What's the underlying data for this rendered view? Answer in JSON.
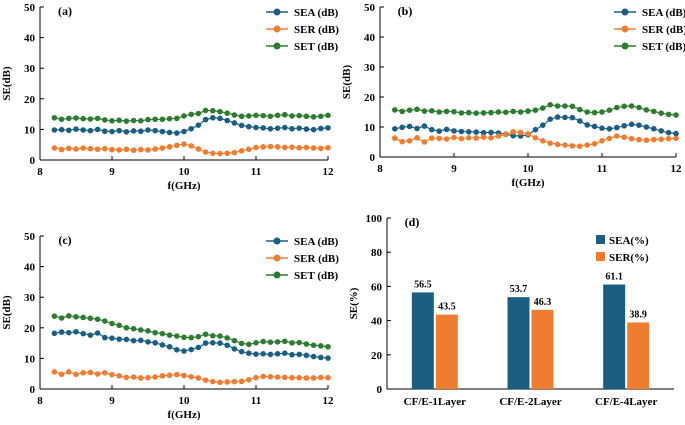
{
  "colors": {
    "sea": "#1b5e82",
    "ser": "#ee7d31",
    "set": "#2e7b32"
  },
  "chart_data": [
    {
      "id": "a",
      "panel_label": "(a)",
      "type": "line",
      "xlabel": "f(GHz)",
      "ylabel": "SE(dB)",
      "xlim": [
        8,
        12
      ],
      "ylim": [
        0,
        50
      ],
      "xticks": [
        8,
        9,
        10,
        11,
        12
      ],
      "yticks": [
        0,
        10,
        20,
        30,
        40,
        50
      ],
      "legend_position": "top-right",
      "x": [
        8.2,
        8.3,
        8.4,
        8.5,
        8.6,
        8.7,
        8.8,
        8.9,
        9.0,
        9.1,
        9.2,
        9.3,
        9.4,
        9.5,
        9.6,
        9.7,
        9.8,
        9.9,
        10.0,
        10.1,
        10.2,
        10.3,
        10.4,
        10.5,
        10.6,
        10.7,
        10.8,
        10.9,
        11.0,
        11.1,
        11.2,
        11.3,
        11.4,
        11.5,
        11.6,
        11.7,
        11.8,
        11.9,
        12.0
      ],
      "series": [
        {
          "name": "SEA (dB)",
          "color_key": "sea",
          "values": [
            9.8,
            9.9,
            9.7,
            10.1,
            9.8,
            9.6,
            10.0,
            9.4,
            9.3,
            9.6,
            9.2,
            9.5,
            9.4,
            9.8,
            9.6,
            9.3,
            9.0,
            8.8,
            9.3,
            10.2,
            11.4,
            13.2,
            13.8,
            13.6,
            12.9,
            12.1,
            11.3,
            10.9,
            10.6,
            10.5,
            10.2,
            10.4,
            10.6,
            10.2,
            10.4,
            10.1,
            9.9,
            10.3,
            10.5
          ]
        },
        {
          "name": "SER (dB)",
          "color_key": "ser",
          "values": [
            3.9,
            3.4,
            3.8,
            3.6,
            3.9,
            3.7,
            3.5,
            3.7,
            3.4,
            3.3,
            3.5,
            3.2,
            3.4,
            3.3,
            3.6,
            3.9,
            4.3,
            4.8,
            5.2,
            4.6,
            3.6,
            2.6,
            2.2,
            2.1,
            2.2,
            2.4,
            3.0,
            3.5,
            4.1,
            4.3,
            4.4,
            4.3,
            4.1,
            4.2,
            4.0,
            4.1,
            3.9,
            3.8,
            4.0
          ]
        },
        {
          "name": "SET (dB)",
          "color_key": "set",
          "values": [
            13.8,
            13.3,
            13.6,
            13.7,
            13.5,
            13.4,
            13.6,
            13.1,
            12.8,
            13.0,
            12.7,
            12.9,
            12.8,
            13.2,
            13.3,
            13.3,
            13.5,
            13.6,
            14.4,
            14.9,
            15.2,
            16.2,
            16.1,
            15.8,
            15.3,
            14.7,
            14.3,
            14.4,
            14.6,
            14.5,
            14.3,
            14.6,
            14.8,
            14.4,
            14.5,
            14.3,
            14.1,
            14.3,
            14.6
          ]
        }
      ]
    },
    {
      "id": "b",
      "panel_label": "(b)",
      "type": "line",
      "xlabel": "f(GHz)",
      "ylabel": "SE(dB)",
      "xlim": [
        8,
        12
      ],
      "ylim": [
        0,
        50
      ],
      "xticks": [
        8,
        9,
        10,
        11,
        12
      ],
      "yticks": [
        0,
        10,
        20,
        30,
        40,
        50
      ],
      "legend_position": "top-right",
      "x": [
        8.2,
        8.3,
        8.4,
        8.5,
        8.6,
        8.7,
        8.8,
        8.9,
        9.0,
        9.1,
        9.2,
        9.3,
        9.4,
        9.5,
        9.6,
        9.7,
        9.8,
        9.9,
        10.0,
        10.1,
        10.2,
        10.3,
        10.4,
        10.5,
        10.6,
        10.7,
        10.8,
        10.9,
        11.0,
        11.1,
        11.2,
        11.3,
        11.4,
        11.5,
        11.6,
        11.7,
        11.8,
        11.9,
        12.0
      ],
      "series": [
        {
          "name": "SEA (dB)",
          "color_key": "sea",
          "values": [
            9.4,
            9.9,
            10.2,
            9.5,
            10.3,
            9.1,
            8.6,
            9.2,
            8.7,
            8.5,
            8.4,
            8.3,
            8.1,
            8.2,
            8.0,
            7.6,
            7.1,
            7.0,
            7.4,
            9.1,
            10.6,
            12.6,
            13.3,
            13.2,
            13.1,
            12.0,
            10.7,
            10.2,
            9.6,
            9.4,
            9.8,
            10.4,
            10.9,
            10.6,
            10.0,
            9.4,
            8.7,
            8.1,
            7.8
          ]
        },
        {
          "name": "SER (dB)",
          "color_key": "ser",
          "values": [
            6.3,
            5.1,
            5.4,
            6.4,
            5.0,
            6.3,
            6.2,
            6.0,
            6.5,
            6.1,
            6.4,
            6.3,
            6.6,
            6.4,
            7.0,
            7.5,
            8.4,
            8.2,
            7.7,
            6.4,
            5.4,
            4.6,
            4.2,
            4.0,
            3.7,
            3.6,
            4.0,
            4.4,
            5.4,
            6.2,
            7.0,
            6.6,
            6.1,
            5.8,
            5.6,
            5.8,
            5.9,
            6.1,
            6.2
          ]
        },
        {
          "name": "SET (dB)",
          "color_key": "set",
          "values": [
            15.7,
            15.2,
            15.6,
            15.9,
            15.3,
            15.4,
            15.0,
            15.2,
            15.1,
            14.7,
            14.8,
            14.6,
            14.7,
            14.8,
            15.0,
            14.9,
            15.2,
            15.0,
            15.3,
            15.6,
            16.3,
            17.4,
            17.0,
            17.0,
            16.9,
            15.8,
            15.0,
            14.8,
            15.0,
            15.6,
            16.5,
            16.9,
            17.0,
            16.5,
            15.7,
            15.2,
            14.6,
            14.2,
            14.0
          ]
        }
      ]
    },
    {
      "id": "c",
      "panel_label": "(c)",
      "type": "line",
      "xlabel": "f(GHz)",
      "ylabel": "SE(dB)",
      "xlim": [
        8,
        12
      ],
      "ylim": [
        0,
        50
      ],
      "xticks": [
        8,
        9,
        10,
        11,
        12
      ],
      "yticks": [
        0,
        10,
        20,
        30,
        40,
        50
      ],
      "legend_position": "top-right",
      "x": [
        8.2,
        8.3,
        8.4,
        8.5,
        8.6,
        8.7,
        8.8,
        8.9,
        9.0,
        9.1,
        9.2,
        9.3,
        9.4,
        9.5,
        9.6,
        9.7,
        9.8,
        9.9,
        10.0,
        10.1,
        10.2,
        10.3,
        10.4,
        10.5,
        10.6,
        10.7,
        10.8,
        10.9,
        11.0,
        11.1,
        11.2,
        11.3,
        11.4,
        11.5,
        11.6,
        11.7,
        11.8,
        11.9,
        12.0
      ],
      "series": [
        {
          "name": "SEA (dB)",
          "color_key": "sea",
          "values": [
            18.2,
            18.6,
            18.4,
            18.7,
            18.1,
            17.6,
            18.3,
            16.8,
            16.6,
            16.3,
            16.2,
            15.8,
            15.9,
            15.4,
            15.1,
            14.4,
            13.8,
            12.8,
            12.4,
            12.9,
            13.6,
            15.0,
            15.1,
            15.0,
            14.3,
            13.1,
            12.2,
            11.7,
            11.4,
            11.5,
            11.3,
            11.5,
            11.7,
            11.2,
            11.3,
            11.0,
            10.6,
            10.3,
            10.1
          ]
        },
        {
          "name": "SER (dB)",
          "color_key": "ser",
          "values": [
            5.6,
            4.8,
            5.6,
            4.8,
            5.3,
            5.4,
            4.9,
            5.3,
            4.7,
            4.3,
            3.8,
            3.9,
            3.6,
            3.7,
            3.9,
            4.3,
            4.5,
            4.7,
            4.4,
            4.0,
            3.6,
            2.9,
            2.4,
            2.2,
            2.3,
            2.4,
            2.5,
            3.0,
            3.7,
            4.1,
            4.0,
            3.9,
            3.8,
            3.7,
            3.7,
            3.6,
            3.6,
            3.8,
            3.7
          ]
        },
        {
          "name": "SET (dB)",
          "color_key": "set",
          "values": [
            23.8,
            23.2,
            23.9,
            23.6,
            23.4,
            23.1,
            22.8,
            22.2,
            21.4,
            20.8,
            20.0,
            19.7,
            19.3,
            19.0,
            18.4,
            18.1,
            17.6,
            17.3,
            16.9,
            16.8,
            17.1,
            17.9,
            17.4,
            17.3,
            16.7,
            15.8,
            14.9,
            14.6,
            15.1,
            15.5,
            15.3,
            15.4,
            15.6,
            15.1,
            15.2,
            14.7,
            14.3,
            14.1,
            13.8
          ]
        }
      ]
    },
    {
      "id": "d",
      "panel_label": "(d)",
      "type": "bar",
      "ylabel": "SE(%)",
      "xlabel": "",
      "ylim": [
        0,
        100
      ],
      "yticks": [
        0,
        20,
        40,
        60,
        80,
        100
      ],
      "legend_position": "top-right",
      "categories": [
        "CF/E-1Layer",
        "CF/E-2Layer",
        "CF/E-4Layer"
      ],
      "series": [
        {
          "name": "SEA(%)",
          "color_key": "sea",
          "values": [
            56.5,
            53.7,
            61.1
          ]
        },
        {
          "name": "SER(%)",
          "color_key": "ser",
          "values": [
            43.5,
            46.3,
            38.9
          ]
        }
      ]
    }
  ]
}
